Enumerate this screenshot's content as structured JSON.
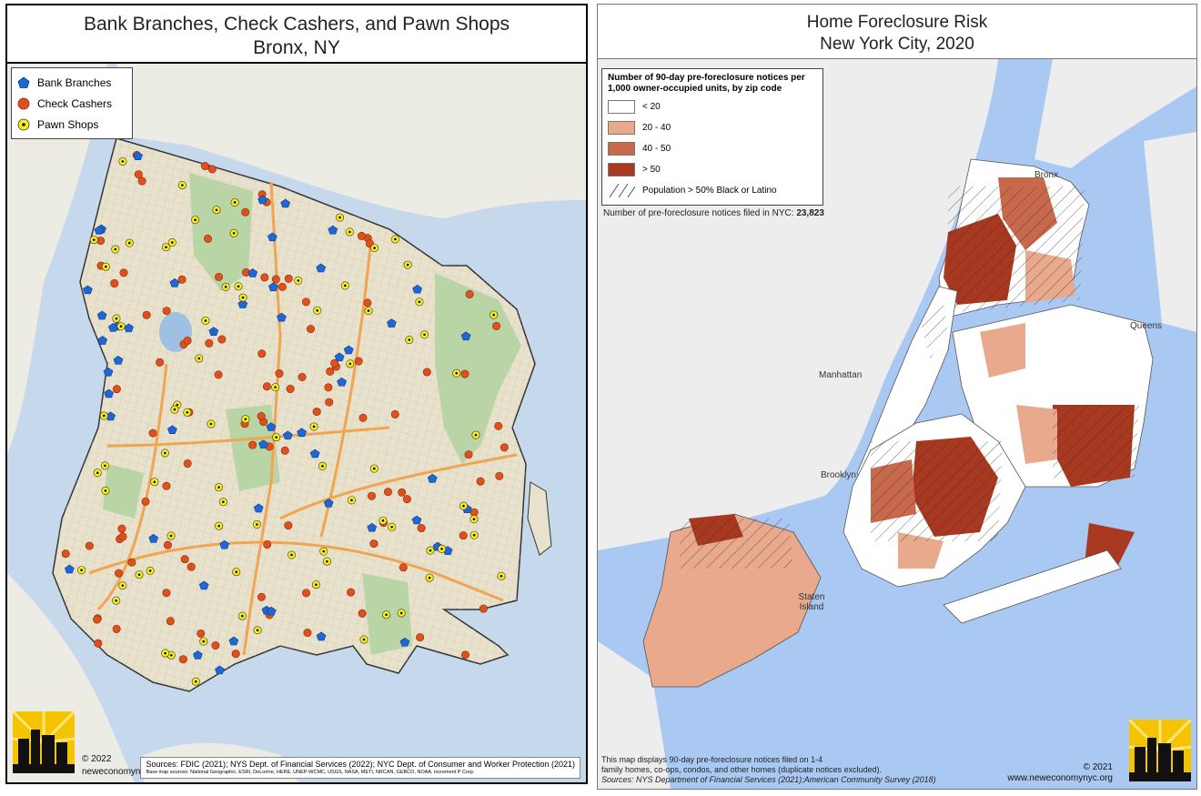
{
  "left_map": {
    "title_line1": "Bank Branches, Check Cashers, and Pawn Shops",
    "title_line2": "Bronx, NY",
    "legend": {
      "bank": "Bank Branches",
      "check": "Check Cashers",
      "pawn": "Pawn Shops"
    },
    "colors": {
      "bank": "#1f66d6",
      "check": "#e0501c",
      "pawn": "#f7ee1a",
      "land": "#e9e4d3",
      "park": "#b8d7a8",
      "water": "#b7d0e8",
      "road": "#f4b46a"
    },
    "copyright": "© 2022",
    "website": "neweconomynyc.org",
    "sources": "Sources: FDIC (2021); NYS Dept. of Financial Services (2022); NYC Dept. of Consumer and Worker Protection (2021)",
    "basemap_sources": "Base map sources: National Geographic, ESRI, DeLorme, HERE, UNEP-WCMC, USGS, NASA, METI, NRCAN, GEBCO, NOAA, increment P Corp.",
    "logo_text": "New Economy Project"
  },
  "right_map": {
    "title_line1": "Home Foreclosure Risk",
    "title_line2": "New York City, 2020",
    "legend_title": "Number of 90-day pre-foreclosure notices per 1,000 owner-occupied units, by zip code",
    "classes": [
      {
        "label": "< 20",
        "color": "#ffffff"
      },
      {
        "label": "20 - 40",
        "color": "#e8a98c"
      },
      {
        "label": "40 - 50",
        "color": "#c9694c"
      },
      {
        "label": "> 50",
        "color": "#a8381f"
      }
    ],
    "hatch_label": "Population > 50% Black or Latino",
    "total_prefix": "Number of pre-foreclosure notices filed in NYC:",
    "total_value": "23,823",
    "boroughs": [
      "Bronx",
      "Queens",
      "Manhattan",
      "Brooklyn",
      "Staten Island"
    ],
    "footnote_line1": "This map displays 90-day pre-foreclosure notices filed on 1-4",
    "footnote_line2": "family homes, co-ops, condos, and other homes (duplicate notices excluded).",
    "footnote_sources": "Sources: NYS Department of Financial Services (2021);American Community Survey (2018)",
    "copyright": "© 2021",
    "website": "www.neweconomynyc.org",
    "logo_text": "New Economy Project"
  }
}
